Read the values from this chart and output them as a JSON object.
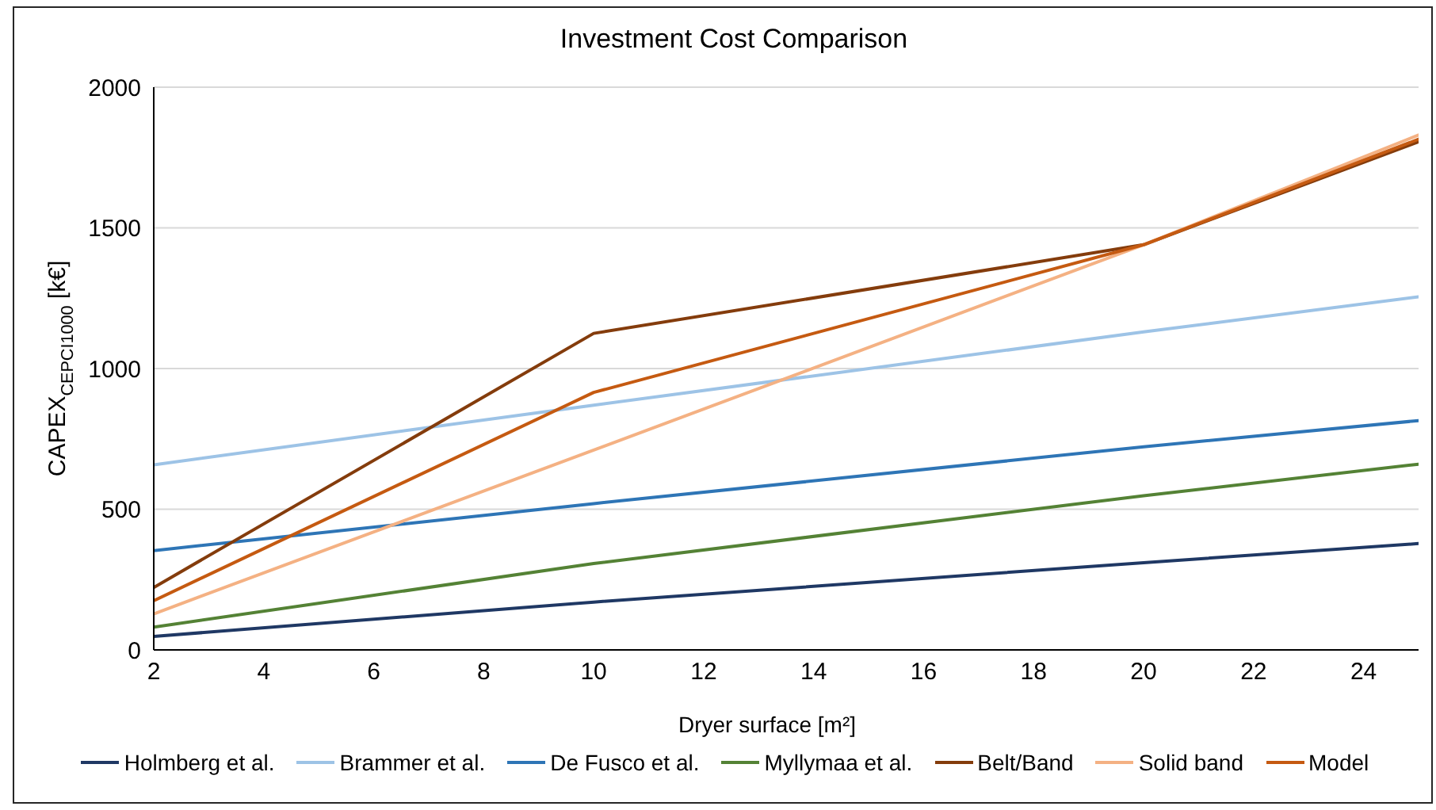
{
  "chart_data": {
    "type": "line",
    "title": "Investment Cost Comparison",
    "xlabel": "Dryer surface [m²]",
    "ylabel": "CAPEX$_{CEPCI}$$_{1000}$ [k€]",
    "x": [
      2,
      10,
      20,
      25
    ],
    "xlim": [
      2,
      25
    ],
    "xticks": [
      2,
      4,
      6,
      8,
      10,
      12,
      14,
      16,
      18,
      20,
      22,
      24
    ],
    "ylim": [
      0,
      2000
    ],
    "yticks": [
      0,
      500,
      1000,
      1500,
      2000
    ],
    "grid": "y",
    "legend": "bottom",
    "series": [
      {
        "name": "Holmberg et al.",
        "color": "#1f3864",
        "values": [
          48,
          170,
          310,
          378
        ]
      },
      {
        "name": "Brammer et al.",
        "color": "#9dc3e6",
        "values": [
          658,
          870,
          1130,
          1255
        ]
      },
      {
        "name": "De Fusco et al.",
        "color": "#2e75b6",
        "values": [
          353,
          520,
          722,
          815
        ]
      },
      {
        "name": "Myllymaa et al.",
        "color": "#548235",
        "values": [
          81,
          307,
          548,
          660
        ]
      },
      {
        "name": "Belt/Band",
        "color": "#843c0c",
        "values": [
          222,
          1125,
          1440,
          1806
        ]
      },
      {
        "name": "Solid band",
        "color": "#f4b183",
        "values": [
          128,
          710,
          1440,
          1830
        ]
      },
      {
        "name": "Model",
        "color": "#c55a11",
        "values": [
          175,
          915,
          1440,
          1815
        ]
      }
    ]
  }
}
